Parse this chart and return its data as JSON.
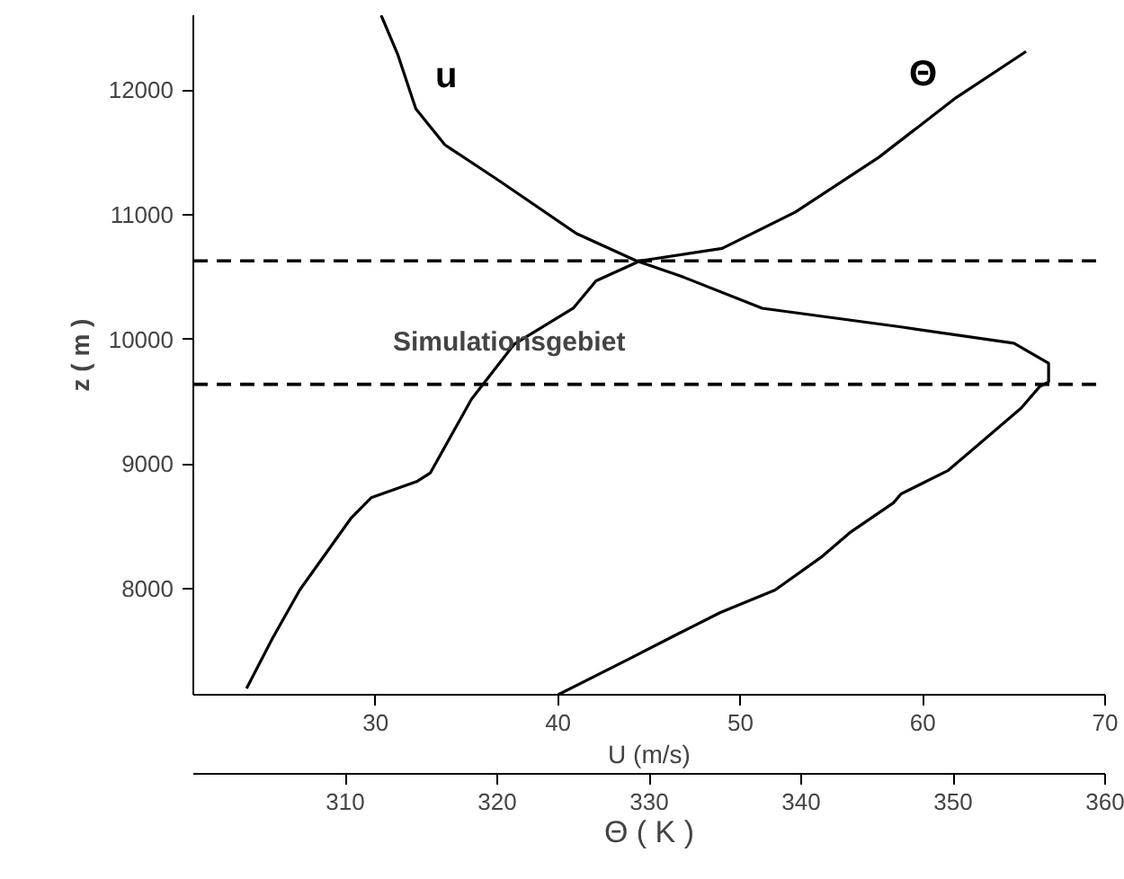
{
  "chart_data": {
    "type": "line",
    "xlabel": "U (m/s)",
    "x2label": "Θ ( K )",
    "ylabel": "z ( m )",
    "xlim": [
      20,
      70
    ],
    "xticks": [
      30,
      40,
      50,
      60,
      70
    ],
    "x2lim": [
      300,
      360
    ],
    "x2ticks": [
      310,
      320,
      330,
      340,
      350,
      360
    ],
    "ylim": [
      7150,
      12600
    ],
    "yticks": [
      8000,
      9000,
      10000,
      11000,
      12000
    ],
    "series": [
      {
        "name": "u",
        "color": "#000000",
        "x": [
          30.3,
          31.2,
          32.2,
          33.8,
          36.8,
          41.0,
          44.3,
          46.7,
          51.2,
          58.8,
          65.0,
          66.9,
          66.9,
          66.4,
          65.4,
          61.4,
          58.8,
          58.4,
          56.0,
          54.4,
          51.9,
          48.9,
          46.6,
          43.8,
          40.0
        ],
        "values": [
          12600,
          12290,
          11850,
          11560,
          11270,
          10850,
          10630,
          10510,
          10250,
          10100,
          9970,
          9810,
          9660,
          9620,
          9450,
          8950,
          8760,
          8690,
          8450,
          8250,
          7990,
          7810,
          7640,
          7430,
          7150
        ]
      },
      {
        "name": "Θ",
        "color": "#000000",
        "axis": "x2",
        "x": [
          303.5,
          305.2,
          307.0,
          310.4,
          311.7,
          314.7,
          315.6,
          318.3,
          321.1,
          325.0,
          326.5,
          329.4,
          334.8,
          339.6,
          345.1,
          350.2,
          354.8
        ],
        "values": [
          7200,
          7600,
          7990,
          8570,
          8730,
          8860,
          8930,
          9520,
          9960,
          10250,
          10470,
          10630,
          10730,
          11020,
          11460,
          11940,
          12310
        ]
      }
    ],
    "ref_lines": [
      {
        "axis": "y",
        "value": 10630,
        "color": "#000000",
        "line_style": "dashed"
      },
      {
        "axis": "y",
        "value": 9640,
        "color": "#000000",
        "line_style": "dashed"
      }
    ],
    "annotations": [
      "Simulationsgebiet"
    ]
  }
}
